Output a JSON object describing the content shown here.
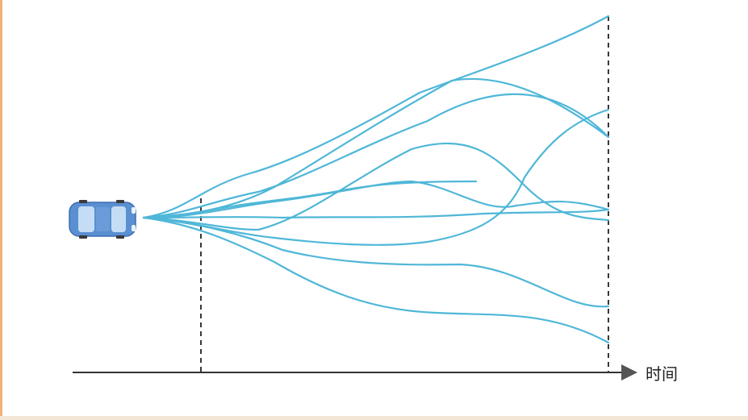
{
  "diagram": {
    "axis_label": "时间",
    "colors": {
      "trajectory": "#4fb7d8",
      "axis": "#333333",
      "car_body": "#5a8fd1",
      "car_window": "#cfe6f7"
    },
    "icons": [
      "car-icon",
      "arrow-right-icon"
    ],
    "trajectory_count": 10
  }
}
